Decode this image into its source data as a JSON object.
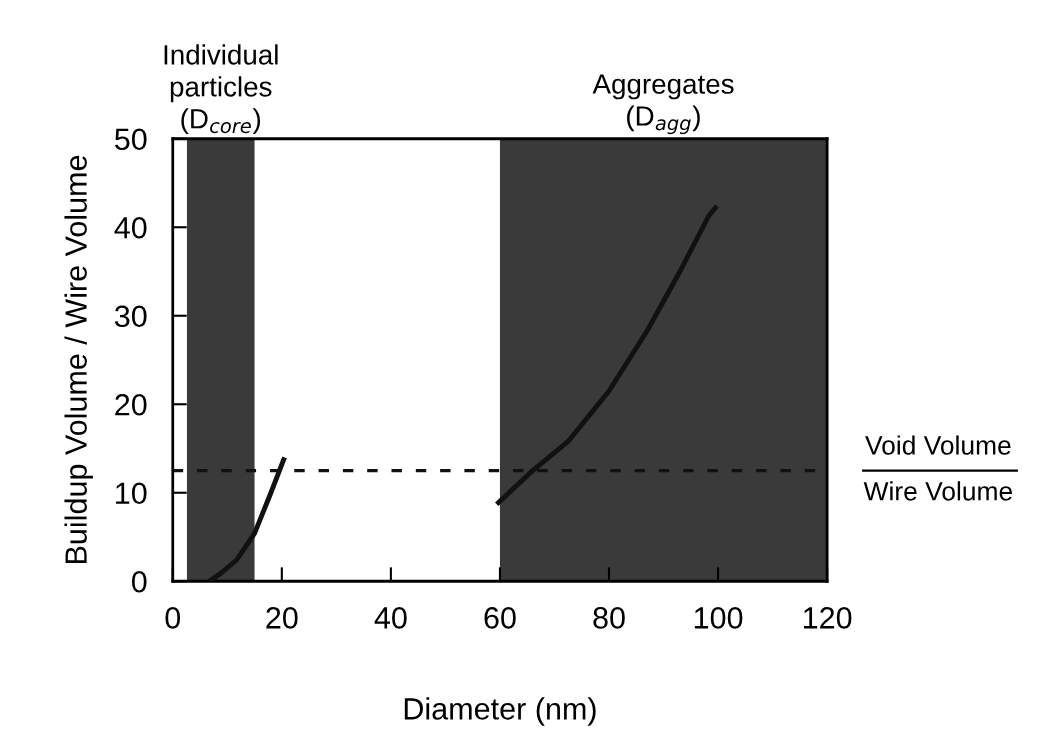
{
  "chart_data": {
    "type": "line",
    "xlabel": "Diameter (nm)",
    "ylabel": "Buildup Volume / Wire Volume",
    "xlim": [
      0,
      120
    ],
    "ylim": [
      0,
      50
    ],
    "xticks": [
      0,
      20,
      40,
      60,
      80,
      100,
      120
    ],
    "yticks": [
      0,
      10,
      20,
      30,
      40,
      50
    ],
    "grid": false,
    "legend": false,
    "marker": "none",
    "line_style": "solid",
    "series": [
      {
        "color": "#111111",
        "x": [
          6.7,
          9,
          11.7,
          15,
          18,
          20.5
        ],
        "values": [
          0,
          1,
          2.4,
          5.4,
          10,
          14
        ]
      },
      {
        "color": "#111111",
        "x": [
          59.4,
          66,
          72.5,
          80,
          87,
          93,
          98.3,
          99.8
        ],
        "values": [
          8.7,
          12.5,
          15.8,
          21.5,
          28.3,
          35,
          41.3,
          42.4
        ]
      }
    ],
    "bands": [
      {
        "axis": "x",
        "from": 2.6,
        "to": 15,
        "label": "Individual\nparticles\n(D$_{core}$)",
        "color": "#3a3a3a"
      },
      {
        "axis": "x",
        "from": 60,
        "to": 120,
        "label": "Aggregates\n(D$_{agg}$)",
        "color": "#3a3a3a"
      }
    ],
    "ref_lines": [
      {
        "axis": "y",
        "value": 12.5,
        "label": "Void Volume\nWire Volume",
        "line_style": "dashed",
        "color": "#111111"
      }
    ]
  }
}
